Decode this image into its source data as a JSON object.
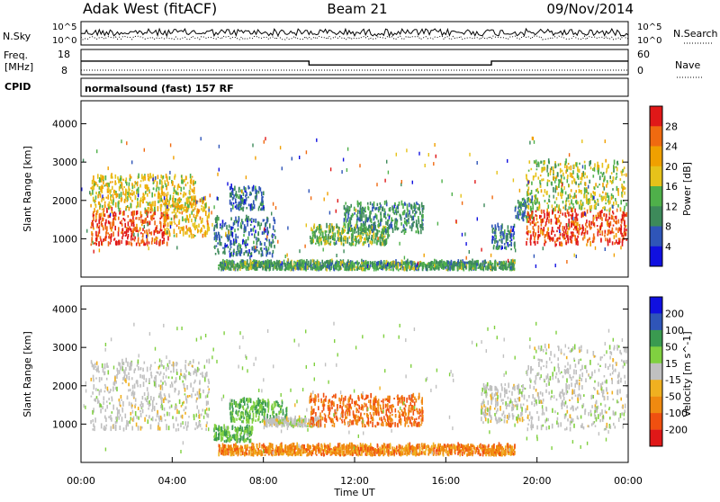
{
  "header": {
    "station": "Adak West (fitACF)",
    "beam": "Beam 21",
    "date": "09/Nov/2014"
  },
  "noise_panel": {
    "left_label": "N.Sky",
    "right_label": "N.Search",
    "ticks": [
      "10^5",
      "10^0"
    ]
  },
  "freq_panel": {
    "left_label_1": "Freq.",
    "left_label_2": "[MHz]",
    "right_label": "Nave",
    "left_ticks": [
      "18",
      "8"
    ],
    "right_ticks": [
      "60",
      "0"
    ],
    "cpid_label": "CPID",
    "cpid_text": "normalsound (fast) 157 RF"
  },
  "colors": {
    "power": [
      "#1010e0",
      "#2f55b8",
      "#3d8a5a",
      "#4fb04a",
      "#e6c21a",
      "#f0a000",
      "#f06a10",
      "#e01818"
    ],
    "velocity": [
      "#e01818",
      "#f05010",
      "#f08a10",
      "#f0b020",
      "#c0c0c0",
      "#80d040",
      "#3a9a50",
      "#2f55b8",
      "#1010e0"
    ]
  },
  "chart_data": [
    {
      "type": "heatmap",
      "name": "Power",
      "ylabel": "Slant Range [km]",
      "ylim": [
        0,
        4600
      ],
      "yticks": [
        1000,
        2000,
        3000,
        4000
      ],
      "colorbar": {
        "label": "Power [dB]",
        "range": [
          0,
          32
        ],
        "ticks": [
          "4",
          "8",
          "12",
          "16",
          "20",
          "24",
          "28"
        ]
      },
      "regions": [
        {
          "t": [
            0.4,
            3.8
          ],
          "r": [
            800,
            1700
          ],
          "v": 28
        },
        {
          "t": [
            0.4,
            5.0
          ],
          "r": [
            1700,
            2600
          ],
          "v": 18
        },
        {
          "t": [
            3.6,
            5.6
          ],
          "r": [
            1000,
            2000
          ],
          "v": 20
        },
        {
          "t": [
            5.8,
            8.5
          ],
          "r": [
            500,
            1500
          ],
          "v": 8
        },
        {
          "t": [
            6.5,
            8.0
          ],
          "r": [
            1700,
            2300
          ],
          "v": 8
        },
        {
          "t": [
            10.0,
            13.5
          ],
          "r": [
            800,
            1300
          ],
          "v": 14
        },
        {
          "t": [
            11.5,
            15.0
          ],
          "r": [
            1100,
            1900
          ],
          "v": 10
        },
        {
          "t": [
            18.0,
            19.0
          ],
          "r": [
            700,
            1300
          ],
          "v": 8
        },
        {
          "t": [
            19.0,
            19.8
          ],
          "r": [
            1400,
            2000
          ],
          "v": 10
        },
        {
          "t": [
            19.5,
            23.9
          ],
          "r": [
            800,
            1700
          ],
          "v": 28
        },
        {
          "t": [
            19.5,
            23.9
          ],
          "r": [
            1700,
            3000
          ],
          "v": 16
        },
        {
          "t": [
            6.0,
            19.0
          ],
          "r": [
            150,
            350
          ],
          "v": 12
        }
      ]
    },
    {
      "type": "heatmap",
      "name": "Velocity",
      "ylabel": "Slant Range [km]",
      "ylim": [
        0,
        4600
      ],
      "yticks": [
        1000,
        2000,
        3000,
        4000
      ],
      "xlabel": "Time UT",
      "xlim": [
        0,
        24
      ],
      "xticks": [
        "00:00",
        "04:00",
        "08:00",
        "12:00",
        "16:00",
        "20:00",
        "00:00"
      ],
      "colorbar": {
        "label": "Velocity [m s^-1]",
        "ticks": [
          "200",
          "100",
          "50",
          "15",
          "-15",
          "-50",
          "-100",
          "-200"
        ]
      },
      "regions": [
        {
          "t": [
            0.4,
            5.6
          ],
          "r": [
            800,
            2600
          ],
          "v": 0
        },
        {
          "t": [
            5.8,
            7.5
          ],
          "r": [
            500,
            900
          ],
          "v": 50
        },
        {
          "t": [
            6.5,
            9.0
          ],
          "r": [
            1000,
            1600
          ],
          "v": 50
        },
        {
          "t": [
            8.0,
            10.5
          ],
          "r": [
            900,
            1100
          ],
          "v": 0
        },
        {
          "t": [
            10.0,
            15.0
          ],
          "r": [
            900,
            1700
          ],
          "v": -50
        },
        {
          "t": [
            17.5,
            19.5
          ],
          "r": [
            1000,
            2000
          ],
          "v": 0
        },
        {
          "t": [
            19.5,
            23.9
          ],
          "r": [
            800,
            3000
          ],
          "v": 0
        },
        {
          "t": [
            6.0,
            19.0
          ],
          "r": [
            150,
            400
          ],
          "v": -40
        }
      ]
    }
  ]
}
